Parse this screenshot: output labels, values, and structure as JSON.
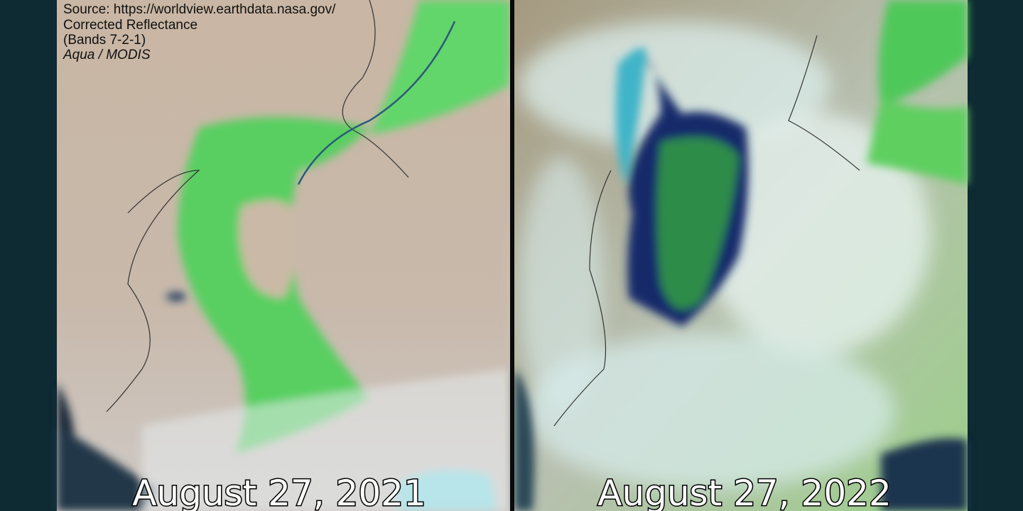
{
  "caption": {
    "source": "Source: https://worldview.earthdata.nasa.gov/",
    "product": "Corrected Reflectance",
    "bands": "(Bands 7-2-1)",
    "sensor": "Aqua / MODIS"
  },
  "panels": [
    {
      "date": "August 27, 2021"
    },
    {
      "date": "August 27, 2022"
    }
  ]
}
